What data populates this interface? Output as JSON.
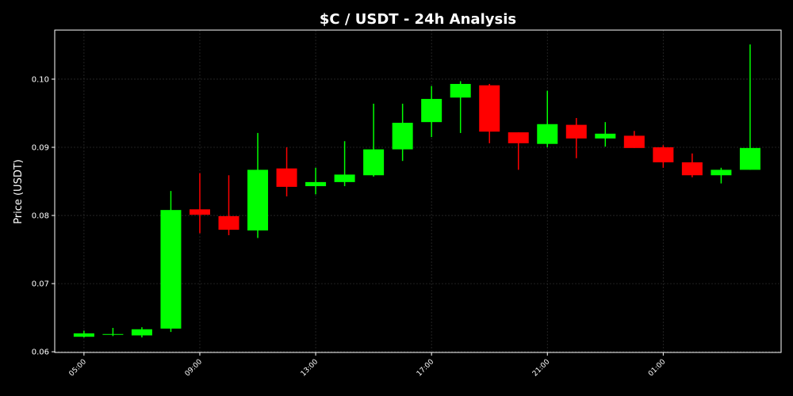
{
  "chart_data": {
    "type": "candlestick",
    "title": "$C / USDT - 24h Analysis",
    "y_label": "Price (USDT)",
    "categories": [
      "05:00",
      null,
      null,
      null,
      "09:00",
      null,
      null,
      null,
      "13:00",
      null,
      null,
      null,
      "17:00",
      null,
      null,
      null,
      "21:00",
      null,
      null,
      null,
      "01:00",
      null,
      null,
      null
    ],
    "open": [
      0.0622,
      0.0625,
      0.0624,
      0.0634,
      0.0809,
      0.0799,
      0.0778,
      0.0869,
      0.0843,
      0.0849,
      0.0859,
      0.0897,
      0.0937,
      0.0973,
      0.0991,
      0.0922,
      0.0905,
      0.0933,
      0.0913,
      0.0917,
      0.09,
      0.0878,
      0.0859,
      0.0867
    ],
    "high": [
      0.0631,
      0.0635,
      0.0636,
      0.0836,
      0.0862,
      0.0859,
      0.0921,
      0.09,
      0.087,
      0.0909,
      0.0964,
      0.0964,
      0.099,
      0.0997,
      0.0993,
      0.0922,
      0.0983,
      0.0943,
      0.0937,
      0.0924,
      0.0903,
      0.0891,
      0.087,
      0.1051
    ],
    "low": [
      0.0621,
      0.0623,
      0.0621,
      0.0629,
      0.0774,
      0.0771,
      0.0767,
      0.0828,
      0.0831,
      0.0843,
      0.0857,
      0.088,
      0.0915,
      0.0921,
      0.0906,
      0.0867,
      0.09,
      0.0884,
      0.0901,
      0.0899,
      0.087,
      0.0856,
      0.0847,
      0.0867
    ],
    "close": [
      0.0627,
      0.0626,
      0.0633,
      0.0808,
      0.0801,
      0.0779,
      0.0867,
      0.0842,
      0.0849,
      0.086,
      0.0897,
      0.0936,
      0.0971,
      0.0993,
      0.0923,
      0.0906,
      0.0934,
      0.0913,
      0.092,
      0.0899,
      0.0878,
      0.0859,
      0.0867,
      0.0899
    ],
    "up_color": "#00ff00",
    "down_color": "#ff0000",
    "ylim": [
      0.0599,
      0.1072
    ],
    "yticks": [
      0.06,
      0.07,
      0.08,
      0.09,
      {
        "value": 0.1,
        "label": "0.10"
      }
    ],
    "grid": true
  }
}
